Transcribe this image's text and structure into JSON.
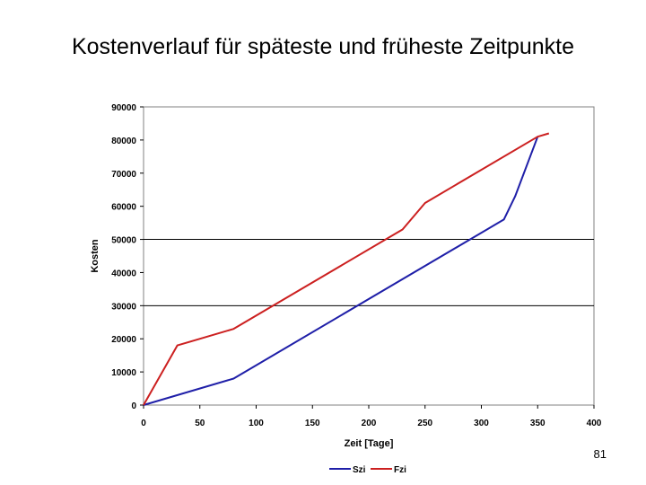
{
  "slide": {
    "title": "Kostenverlauf für späteste und früheste Zeitpunkte",
    "page_number": "81"
  },
  "colors": {
    "szi": "#1f1fa8",
    "fzi": "#cc2020"
  },
  "chart_data": {
    "type": "line",
    "title": "",
    "xlabel": "Zeit [Tage]",
    "ylabel": "Kosten",
    "xlim": [
      0,
      400
    ],
    "ylim": [
      0,
      90000
    ],
    "x_ticks": [
      "0",
      "50",
      "100",
      "150",
      "200",
      "250",
      "300",
      "350",
      "400"
    ],
    "y_ticks": [
      "0",
      "10000",
      "20000",
      "30000",
      "40000",
      "50000",
      "60000",
      "70000",
      "80000",
      "90000"
    ],
    "horizontal_gridlines": [
      30000,
      50000
    ],
    "legend_position": "bottom",
    "series": [
      {
        "name": "Szi",
        "color": "#1f1fa8",
        "x": [
          0,
          80,
          320,
          330,
          350
        ],
        "y": [
          0,
          8000,
          56000,
          63000,
          81000
        ]
      },
      {
        "name": "Fzi",
        "color": "#cc2020",
        "x": [
          0,
          30,
          80,
          230,
          250,
          350,
          360
        ],
        "y": [
          0,
          18000,
          23000,
          53000,
          61000,
          81000,
          82000
        ]
      }
    ]
  }
}
